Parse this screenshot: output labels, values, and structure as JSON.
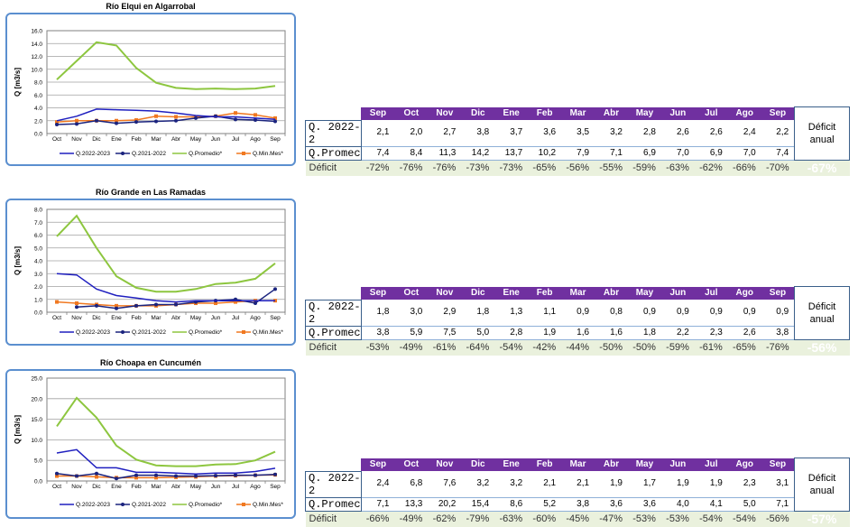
{
  "colors": {
    "q2022": "#1f1fbf",
    "q2021": "#1a237e",
    "prom": "#8dc63f",
    "min": "#f07820",
    "frame": "#5b8fcf",
    "header": "#7030a0",
    "deficit_bg": "#eaf1dd",
    "annual_bg": "#1f2d45"
  },
  "table_header": {
    "months": [
      "Sep",
      "Oct",
      "Nov",
      "Dic",
      "Ene",
      "Feb",
      "Mar",
      "Abr",
      "May",
      "Jun",
      "Jul",
      "Ago",
      "Sep"
    ],
    "annual_label_1": "Déficit",
    "annual_label_2": "anual"
  },
  "panels": [
    {
      "title": "Río Elqui en Algarrobal",
      "table": {
        "row1_label": "Q. 2022-2",
        "row1": [
          "2,1",
          "2,0",
          "2,7",
          "3,8",
          "3,7",
          "3,6",
          "3,5",
          "3,2",
          "2,8",
          "2,6",
          "2,6",
          "2,4",
          "2,2"
        ],
        "row2_label": "Q.Promec",
        "row2": [
          "7,4",
          "8,4",
          "11,3",
          "14,2",
          "13,7",
          "10,2",
          "7,9",
          "7,1",
          "6,9",
          "7,0",
          "6,9",
          "7,0",
          "7,4"
        ],
        "deficit_label": "Déficit",
        "deficit": [
          "-72%",
          "-76%",
          "-76%",
          "-73%",
          "-73%",
          "-65%",
          "-56%",
          "-55%",
          "-59%",
          "-63%",
          "-62%",
          "-66%",
          "-70%"
        ],
        "annual": "-67%"
      }
    },
    {
      "title": "Río Grande en Las Ramadas",
      "table": {
        "row1_label": "Q. 2022-2",
        "row1": [
          "1,8",
          "3,0",
          "2,9",
          "1,8",
          "1,3",
          "1,1",
          "0,9",
          "0,8",
          "0,9",
          "0,9",
          "0,9",
          "0,9",
          "0,9"
        ],
        "row2_label": "Q.Promec",
        "row2": [
          "3,8",
          "5,9",
          "7,5",
          "5,0",
          "2,8",
          "1,9",
          "1,6",
          "1,6",
          "1,8",
          "2,2",
          "2,3",
          "2,6",
          "3,8"
        ],
        "deficit_label": "Déficit",
        "deficit": [
          "-53%",
          "-49%",
          "-61%",
          "-64%",
          "-54%",
          "-42%",
          "-44%",
          "-50%",
          "-50%",
          "-59%",
          "-61%",
          "-65%",
          "-76%"
        ],
        "annual": "-56%"
      }
    },
    {
      "title": "Río Choapa en Cuncumén",
      "table": {
        "row1_label": "Q. 2022-2",
        "row1": [
          "2,4",
          "6,8",
          "7,6",
          "3,2",
          "3,2",
          "2,1",
          "2,1",
          "1,9",
          "1,7",
          "1,9",
          "1,9",
          "2,3",
          "3,1"
        ],
        "row2_label": "Q.Promec",
        "row2": [
          "7,1",
          "13,3",
          "20,2",
          "15,4",
          "8,6",
          "5,2",
          "3,8",
          "3,6",
          "3,6",
          "4,0",
          "4,1",
          "5,0",
          "7,1"
        ],
        "deficit_label": "Déficit",
        "deficit": [
          "-66%",
          "-49%",
          "-62%",
          "-79%",
          "-63%",
          "-60%",
          "-45%",
          "-47%",
          "-53%",
          "-53%",
          "-54%",
          "-54%",
          "-56%"
        ],
        "annual": "-57%"
      }
    }
  ],
  "chart_data": [
    {
      "type": "line",
      "title": "Río Elqui en Algarrobal",
      "ylabel": "Q [m3/s]",
      "categories": [
        "Oct",
        "Nov",
        "Dic",
        "Ene",
        "Feb",
        "Mar",
        "Abr",
        "May",
        "Jun",
        "Jul",
        "Ago",
        "Sep"
      ],
      "ylim": [
        0,
        16
      ],
      "yticks": [
        "0.0",
        "2.0",
        "4.0",
        "6.0",
        "8.0",
        "10.0",
        "12.0",
        "14.0",
        "16.0"
      ],
      "series": [
        {
          "name": "Q.2022-2023",
          "values": [
            2.0,
            2.7,
            3.8,
            3.7,
            3.6,
            3.5,
            3.2,
            2.8,
            2.6,
            2.6,
            2.4,
            2.2
          ]
        },
        {
          "name": "Q.2021-2022",
          "values": [
            1.4,
            1.5,
            2.0,
            1.6,
            1.8,
            1.9,
            2.0,
            2.4,
            2.7,
            2.2,
            2.1,
            1.9
          ]
        },
        {
          "name": "Q.Promedio*",
          "values": [
            8.4,
            11.3,
            14.2,
            13.7,
            10.2,
            7.9,
            7.1,
            6.9,
            7.0,
            6.9,
            7.0,
            7.4
          ]
        },
        {
          "name": "Q.Min.Mes*",
          "values": [
            1.8,
            2.0,
            2.0,
            2.0,
            2.1,
            2.7,
            2.6,
            2.6,
            2.7,
            3.2,
            2.9,
            2.4
          ]
        }
      ]
    },
    {
      "type": "line",
      "title": "Río Grande en Las Ramadas",
      "ylabel": "Q [m3/s]",
      "categories": [
        "Oct",
        "Nov",
        "Dic",
        "Ene",
        "Feb",
        "Mar",
        "Abr",
        "May",
        "Jun",
        "Jul",
        "Ago",
        "Sep"
      ],
      "ylim": [
        0,
        8
      ],
      "yticks": [
        "0.0",
        "1.0",
        "2.0",
        "3.0",
        "4.0",
        "5.0",
        "6.0",
        "7.0",
        "8.0"
      ],
      "series": [
        {
          "name": "Q.2022-2023",
          "values": [
            3.0,
            2.9,
            1.8,
            1.3,
            1.1,
            0.9,
            0.8,
            0.9,
            0.9,
            0.9,
            0.9,
            0.9
          ]
        },
        {
          "name": "Q.2021-2022",
          "values": [
            null,
            0.4,
            0.5,
            0.3,
            0.5,
            0.6,
            0.6,
            0.8,
            0.9,
            1.0,
            0.7,
            1.8
          ]
        },
        {
          "name": "Q.Promedio*",
          "values": [
            5.9,
            7.5,
            5.0,
            2.8,
            1.9,
            1.6,
            1.6,
            1.8,
            2.2,
            2.3,
            2.6,
            3.8
          ]
        },
        {
          "name": "Q.Min.Mes*",
          "values": [
            0.8,
            0.7,
            0.6,
            0.5,
            0.5,
            0.5,
            0.6,
            0.7,
            0.7,
            0.8,
            0.9,
            0.9
          ]
        }
      ]
    },
    {
      "type": "line",
      "title": "Río Choapa en Cuncumén",
      "ylabel": "Q [m3/s]",
      "categories": [
        "Oct",
        "Nov",
        "Dic",
        "Ene",
        "Feb",
        "Mar",
        "Abr",
        "May",
        "Jun",
        "Jul",
        "Ago",
        "Sep"
      ],
      "ylim": [
        0,
        25
      ],
      "yticks": [
        "0.0",
        "5.0",
        "10.0",
        "15.0",
        "20.0",
        "25.0"
      ],
      "series": [
        {
          "name": "Q.2022-2023",
          "values": [
            6.8,
            7.6,
            3.2,
            3.2,
            2.1,
            2.1,
            1.9,
            1.7,
            1.9,
            1.9,
            2.3,
            3.1
          ]
        },
        {
          "name": "Q.2021-2022",
          "values": [
            1.8,
            1.2,
            1.8,
            0.6,
            1.4,
            1.4,
            1.2,
            1.2,
            1.3,
            1.4,
            1.4,
            1.6
          ]
        },
        {
          "name": "Q.Promedio*",
          "values": [
            13.3,
            20.2,
            15.4,
            8.6,
            5.2,
            3.8,
            3.6,
            3.6,
            4.0,
            4.1,
            5.0,
            7.1
          ]
        },
        {
          "name": "Q.Min.Mes*",
          "values": [
            1.2,
            1.2,
            1.0,
            0.8,
            0.8,
            0.8,
            0.9,
            1.0,
            1.2,
            1.3,
            1.4,
            1.5
          ]
        }
      ]
    }
  ]
}
